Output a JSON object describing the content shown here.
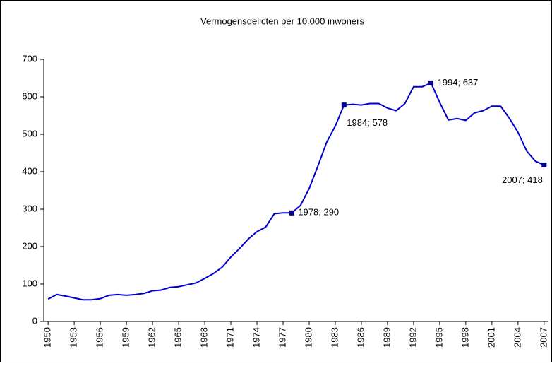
{
  "chart_data": {
    "type": "line",
    "title": "Vermogensdelicten per 10.000 inwoners",
    "x": [
      1950,
      1951,
      1952,
      1953,
      1954,
      1955,
      1956,
      1957,
      1958,
      1959,
      1960,
      1961,
      1962,
      1963,
      1964,
      1965,
      1966,
      1967,
      1968,
      1969,
      1970,
      1971,
      1972,
      1973,
      1974,
      1975,
      1976,
      1977,
      1978,
      1979,
      1980,
      1981,
      1982,
      1983,
      1984,
      1985,
      1986,
      1987,
      1988,
      1989,
      1990,
      1991,
      1992,
      1993,
      1994,
      1995,
      1996,
      1997,
      1998,
      1999,
      2000,
      2001,
      2002,
      2003,
      2004,
      2005,
      2006,
      2007
    ],
    "series": [
      {
        "color": "#0000cc",
        "values": [
          60,
          72,
          68,
          63,
          58,
          58,
          61,
          70,
          72,
          70,
          72,
          75,
          82,
          84,
          91,
          93,
          98,
          103,
          115,
          128,
          145,
          172,
          195,
          220,
          240,
          252,
          288,
          290,
          290,
          310,
          355,
          415,
          478,
          522,
          578,
          580,
          578,
          582,
          582,
          570,
          563,
          582,
          627,
          627,
          637,
          585,
          538,
          542,
          537,
          557,
          563,
          575,
          575,
          543,
          505,
          455,
          428,
          418
        ]
      }
    ],
    "xlim": [
      1949.5,
      2007.5
    ],
    "xticks": [
      1950,
      1953,
      1956,
      1959,
      1962,
      1965,
      1968,
      1971,
      1974,
      1977,
      1980,
      1983,
      1986,
      1989,
      1992,
      1995,
      1998,
      2001,
      2004,
      2007
    ],
    "ylim": [
      0,
      700
    ],
    "yticks": [
      0,
      100,
      200,
      300,
      400,
      500,
      600,
      700
    ],
    "grid": false,
    "annotations": [
      {
        "x": 1978,
        "y": 290,
        "label": "1978; 290",
        "position": "right"
      },
      {
        "x": 1984,
        "y": 578,
        "label": "1984; 578",
        "position": "below"
      },
      {
        "x": 1994,
        "y": 637,
        "label": "1994; 637",
        "position": "right"
      },
      {
        "x": 2007,
        "y": 418,
        "label": "2007; 418",
        "position": "below-left"
      }
    ]
  }
}
